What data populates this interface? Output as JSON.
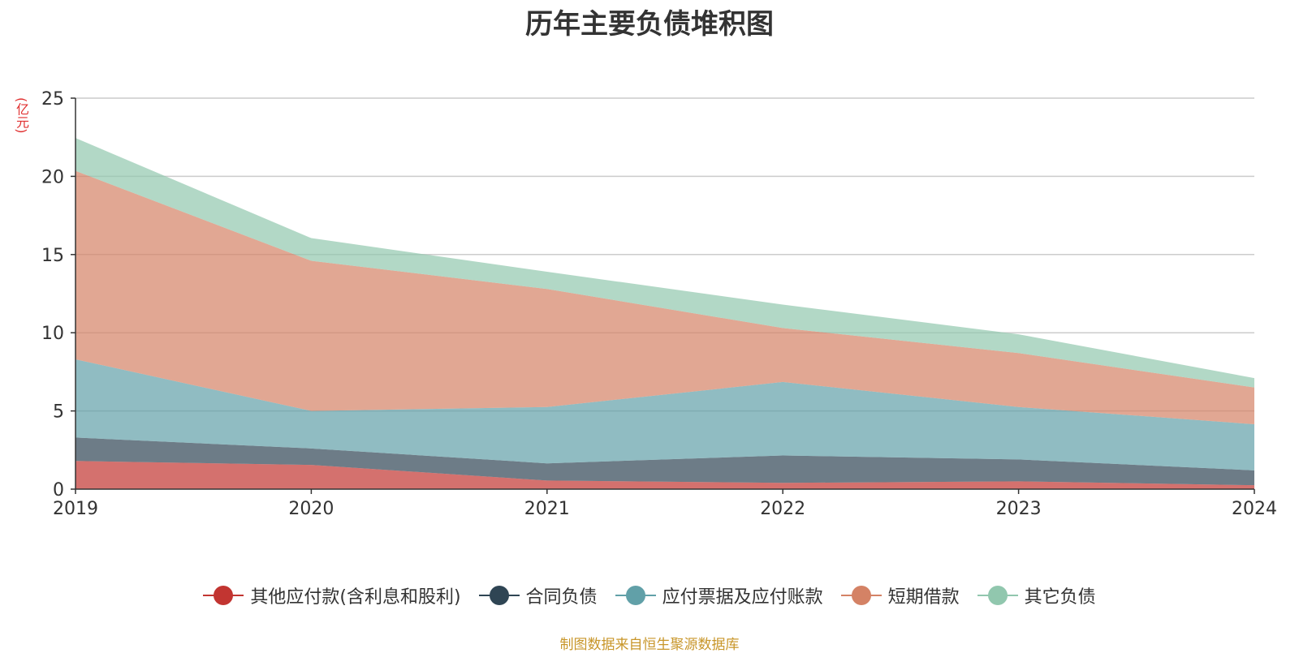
{
  "page": {
    "title": "历年主要负债堆积图",
    "unit": "(亿元)",
    "source": "制图数据来自恒生聚源数据库"
  },
  "chart_data": {
    "type": "area",
    "stacked": true,
    "title": "历年主要负债堆积图",
    "xlabel": "",
    "ylabel": "(亿元)",
    "categories": [
      "2019",
      "2020",
      "2021",
      "2022",
      "2023",
      "2024"
    ],
    "ylim": [
      0,
      25
    ],
    "yticks": [
      0,
      5,
      10,
      15,
      20,
      25
    ],
    "grid": true,
    "legend_position": "bottom",
    "series": [
      {
        "name": "其他应付款(含利息和股利)",
        "color": "#c23531",
        "values": [
          1.8,
          1.55,
          0.55,
          0.4,
          0.5,
          0.25
        ]
      },
      {
        "name": "合同负债",
        "color": "#2f4554",
        "values": [
          1.5,
          1.05,
          1.1,
          1.75,
          1.4,
          0.95
        ]
      },
      {
        "name": "应付票据及应付账款",
        "color": "#61a0a8",
        "values": [
          5.0,
          2.4,
          3.6,
          4.7,
          3.35,
          2.95
        ]
      },
      {
        "name": "短期借款",
        "color": "#d48265",
        "values": [
          12.05,
          9.6,
          7.55,
          3.45,
          3.45,
          2.35
        ]
      },
      {
        "name": "其它负债",
        "color": "#91c7ae",
        "values": [
          2.1,
          1.45,
          1.1,
          1.5,
          1.2,
          0.6
        ]
      }
    ]
  }
}
